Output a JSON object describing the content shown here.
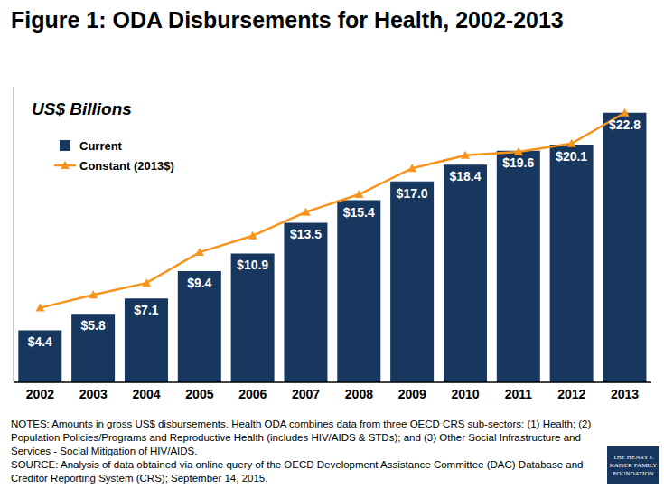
{
  "chart_data": {
    "type": "bar",
    "title": "Figure 1: ODA Disbursements for Health, 2002-2013",
    "subtitle": "US$ Billions",
    "categories": [
      "2002",
      "2003",
      "2004",
      "2005",
      "2006",
      "2007",
      "2008",
      "2009",
      "2010",
      "2011",
      "2012",
      "2013"
    ],
    "series": [
      {
        "name": "Current",
        "type": "bar",
        "color": "#17375e",
        "values": [
          4.4,
          5.8,
          7.1,
          9.4,
          10.9,
          13.5,
          15.4,
          17.0,
          18.4,
          19.6,
          20.1,
          22.8
        ],
        "value_labels": [
          "$4.4",
          "$5.8",
          "$7.1",
          "$9.4",
          "$10.9",
          "$13.5",
          "$15.4",
          "$17.0",
          "$18.4",
          "$19.6",
          "$20.1",
          "$22.8"
        ]
      },
      {
        "name": "Constant (2013$)",
        "type": "line",
        "color": "#f7941d",
        "marker": "triangle",
        "values": [
          6.3,
          7.4,
          8.4,
          11.0,
          12.4,
          14.4,
          15.9,
          18.1,
          19.2,
          19.5,
          20.2,
          22.8
        ]
      }
    ],
    "ylim": [
      0,
      25
    ],
    "tick_labels": "x",
    "grid": false,
    "legend": "upper left",
    "data_labels": true,
    "notes": "NOTES: Amounts in gross US$ disbursements. Health ODA combines data from three OECD CRS sub-sectors: (1) Health; (2) Population Policies/Programs and Reproductive Health (includes HIV/AIDS & STDs); and (3) Other Social Infrastructure and Services - Social Mitigation of HIV/AIDS.",
    "source": "SOURCE: Analysis of data obtained via online query of the OECD Development Assistance Committee (DAC) Database and Creditor Reporting System (CRS); September 14, 2015.",
    "logo": "THE HENRY J. KAISER FAMILY FOUNDATION"
  }
}
